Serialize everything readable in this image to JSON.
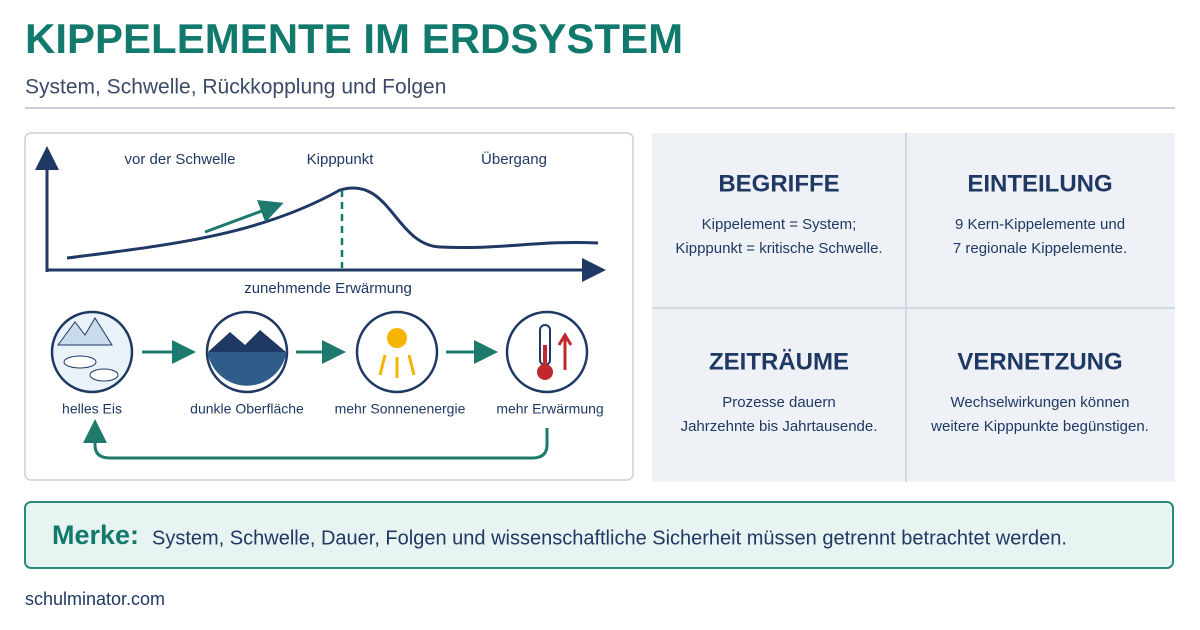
{
  "header": {
    "title": "KIPPELEMENTE IM ERDSYSTEM",
    "subtitle": "System, Schwelle, Rückkopplung und Folgen"
  },
  "diagram": {
    "phases": [
      "vor der Schwelle",
      "Kipppunkt",
      "Übergang"
    ],
    "x_axis_label": "zunehmende Erwärmung",
    "feedback_steps": [
      "helles Eis",
      "dunkle Oberfläche",
      "mehr Sonnenenergie",
      "mehr Erwärmung"
    ]
  },
  "cards": [
    {
      "title": "BEGRIFFE",
      "lines": [
        "Kippelement = System;",
        "Kipppunkt = kritische Schwelle."
      ]
    },
    {
      "title": "EINTEILUNG",
      "lines": [
        "9 Kern-Kippelemente und",
        "7 regionale Kippelemente."
      ]
    },
    {
      "title": "ZEITRÄUME",
      "lines": [
        "Prozesse dauern",
        "Jahrzehnte bis Jahrtausende."
      ]
    },
    {
      "title": "VERNETZUNG",
      "lines": [
        "Wechselwirkungen können",
        "weitere Kipppunkte begünstigen."
      ]
    }
  ],
  "note": {
    "label": "Merke:",
    "text": "System, Schwelle, Dauer, Folgen und wissenschaftliche Sicherheit müssen getrennt betrachtet werden."
  },
  "footer": "schulminator.com"
}
